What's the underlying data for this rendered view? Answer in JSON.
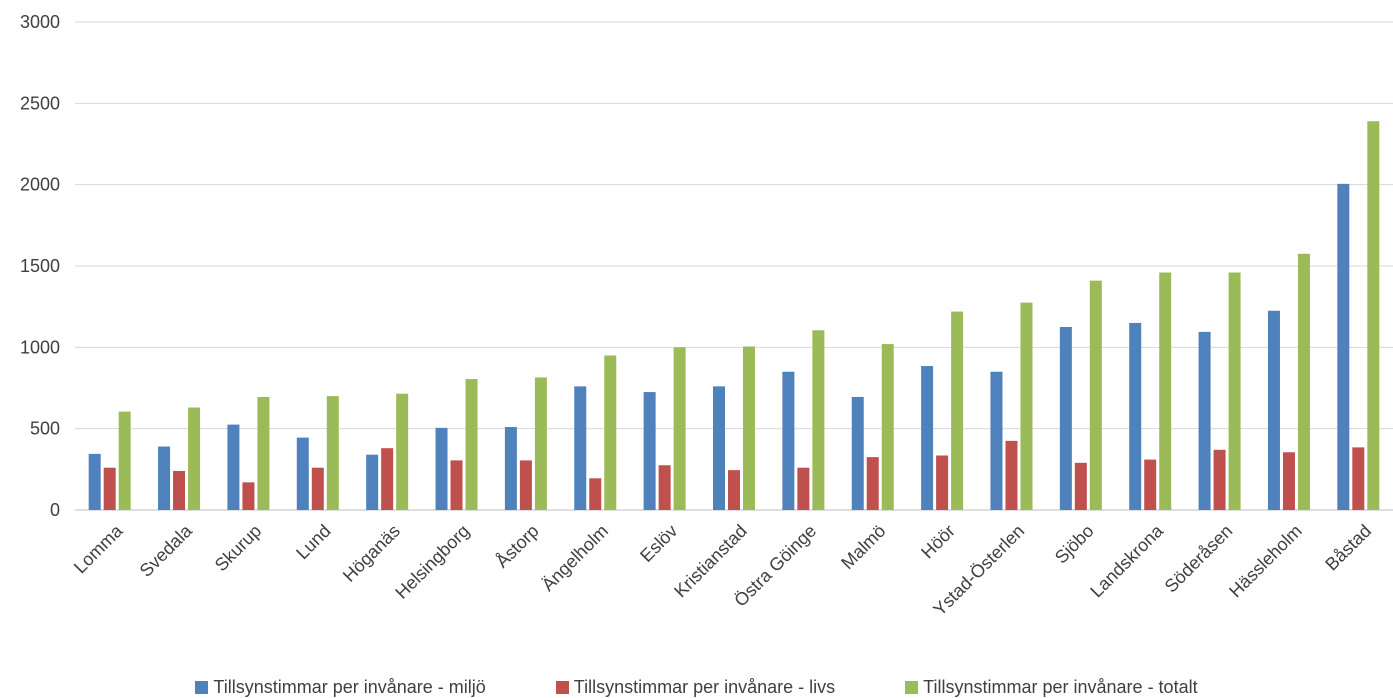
{
  "chart_data": {
    "type": "bar",
    "title": "",
    "xlabel": "",
    "ylabel": "",
    "ylim": [
      0,
      3000
    ],
    "yticks": [
      0,
      500,
      1000,
      1500,
      2000,
      2500,
      3000
    ],
    "grid": true,
    "legend_position": "bottom",
    "categories": [
      "Lomma",
      "Svedala",
      "Skurup",
      "Lund",
      "Höganäs",
      "Helsingborg",
      "Åstorp",
      "Ängelholm",
      "Eslöv",
      "Kristianstad",
      "Östra Göinge",
      "Malmö",
      "Höör",
      "Ystad-Österlen",
      "Sjöbo",
      "Landskrona",
      "Söderåsen",
      "Hässleholm",
      "Båstad"
    ],
    "series": [
      {
        "name": "Tillsynstimmar per invånare - miljö",
        "color": "#4f81bd",
        "values": [
          345,
          390,
          525,
          445,
          340,
          505,
          510,
          760,
          725,
          760,
          850,
          695,
          885,
          850,
          1125,
          1150,
          1095,
          1225,
          2005
        ]
      },
      {
        "name": "Tillsynstimmar per invånare - livs",
        "color": "#c0504d",
        "values": [
          260,
          240,
          170,
          260,
          380,
          305,
          305,
          195,
          275,
          245,
          260,
          325,
          335,
          425,
          290,
          310,
          370,
          355,
          385
        ]
      },
      {
        "name": "Tillsynstimmar per invånare - totalt",
        "color": "#9bbb59",
        "values": [
          605,
          630,
          695,
          700,
          715,
          805,
          815,
          950,
          1000,
          1005,
          1105,
          1020,
          1220,
          1275,
          1410,
          1460,
          1460,
          1575,
          2390
        ]
      }
    ]
  }
}
